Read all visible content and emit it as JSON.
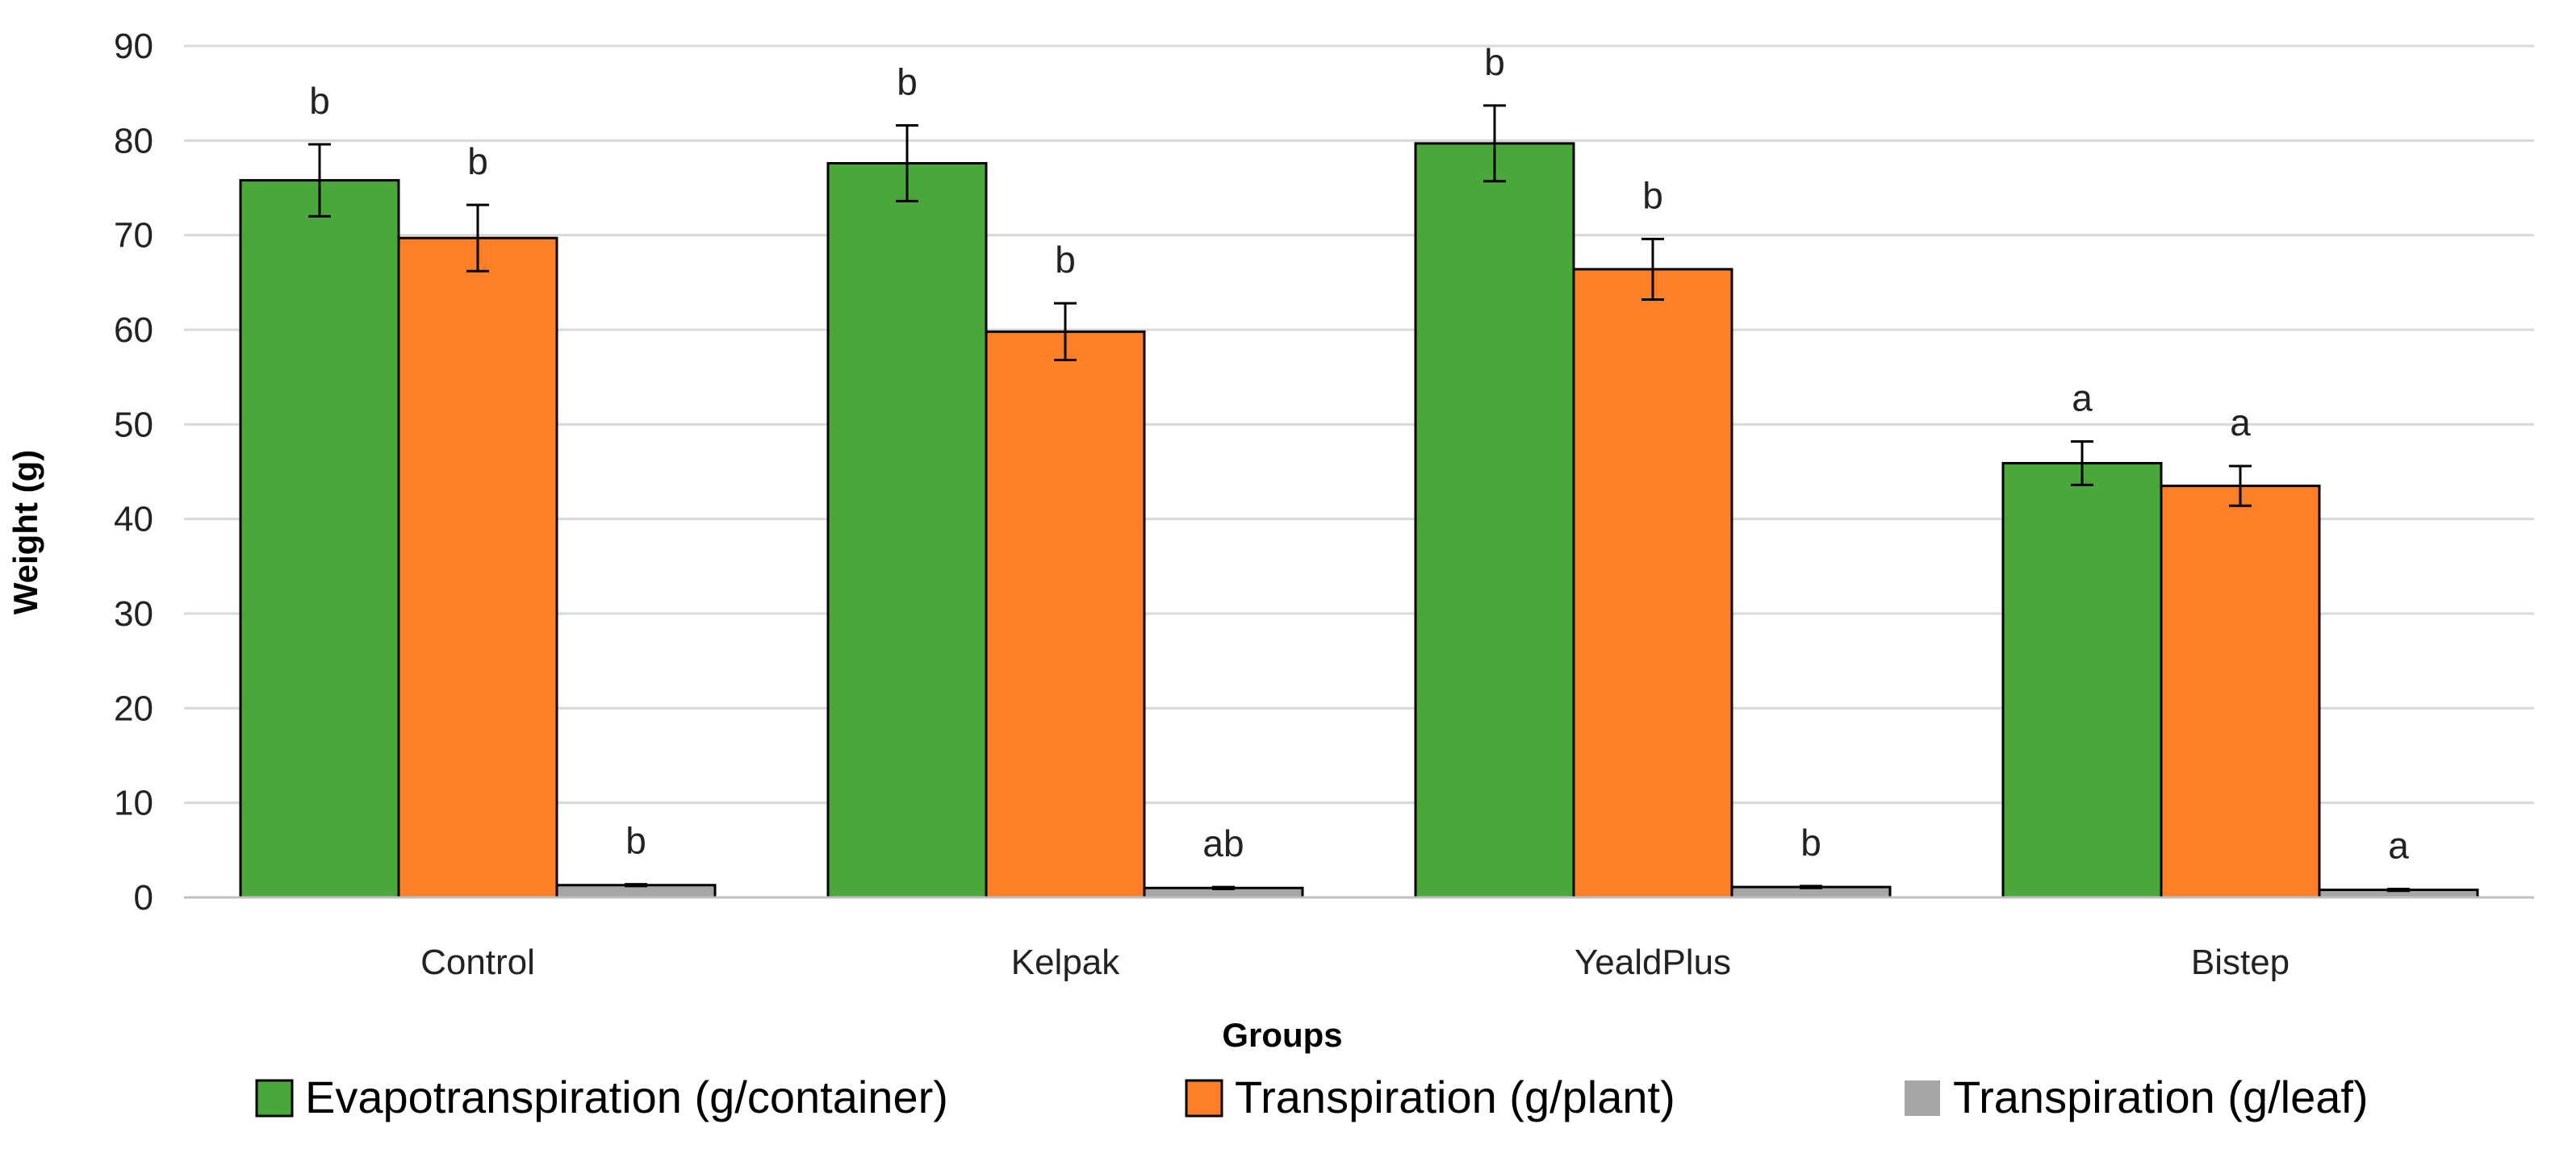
{
  "chart_data": {
    "type": "bar",
    "title": "",
    "xlabel": "Groups",
    "ylabel": "Weight (g)",
    "ylim": [
      0,
      90
    ],
    "yticks": [
      0,
      10,
      20,
      30,
      40,
      50,
      60,
      70,
      80,
      90
    ],
    "grid": true,
    "legend_position": "bottom",
    "categories": [
      "Control",
      "Kelpak",
      "YealdPlus",
      "Bistep"
    ],
    "series": [
      {
        "name": "Evapotranspiration (g/container)",
        "color": "#4aa83a",
        "values": [
          75.8,
          77.6,
          79.7,
          45.9
        ],
        "errors": [
          3.8,
          4.0,
          4.0,
          2.3
        ],
        "sig": [
          "b",
          "b",
          "b",
          "a"
        ]
      },
      {
        "name": "Transpiration (g/plant)",
        "color": "#ff7f27",
        "values": [
          69.7,
          59.8,
          66.4,
          43.5
        ],
        "errors": [
          3.5,
          3.0,
          3.2,
          2.1
        ],
        "sig": [
          "b",
          "b",
          "b",
          "a"
        ]
      },
      {
        "name": "Transpiration (g/leaf)",
        "color": "#a6a6a6",
        "values": [
          1.3,
          1.0,
          1.1,
          0.8
        ],
        "errors": [
          0.1,
          0.1,
          0.1,
          0.1
        ],
        "sig": [
          "b",
          "ab",
          "b",
          "a"
        ]
      }
    ]
  }
}
